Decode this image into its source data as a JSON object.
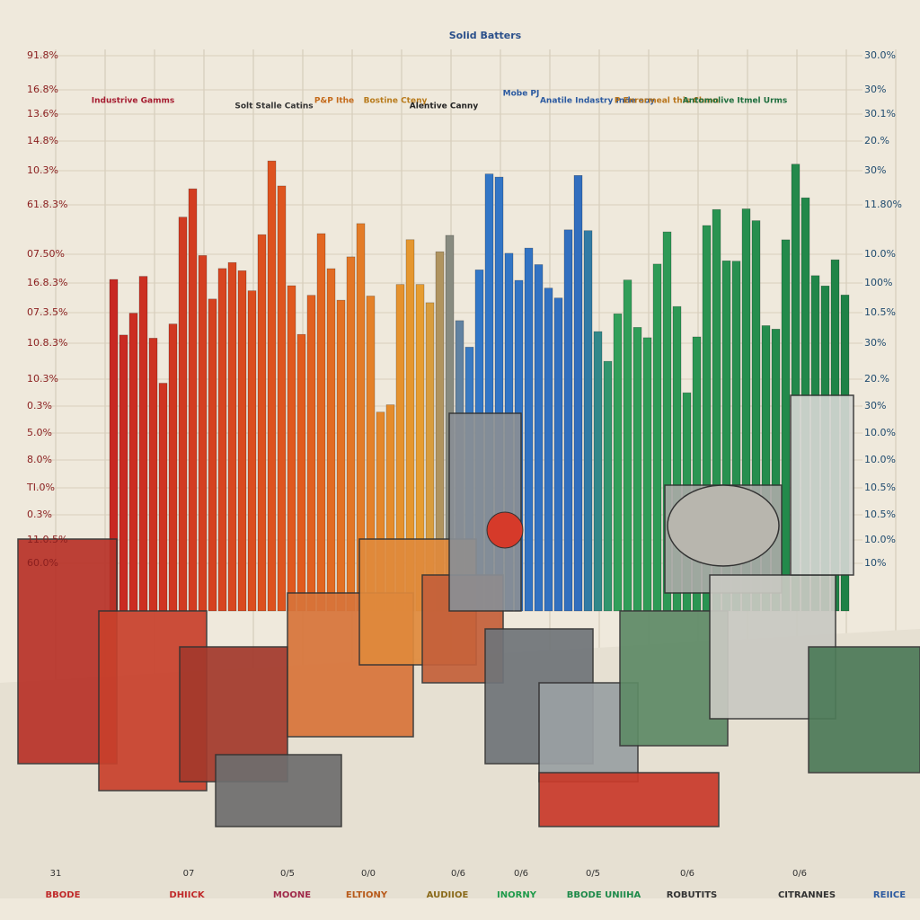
{
  "title": "Solid Batters",
  "left_labels": [
    "91.8%",
    "16.8%",
    "13.6%",
    "14.8%",
    "10.3%",
    "61.8.3%",
    "07.50%",
    "16.8.3%",
    "07.3.5%",
    "10.8.3%",
    "10.3%",
    "0.3%",
    "5.0%",
    "8.0%",
    "TI.0%",
    "0.3%",
    "11.0.5%",
    "60.0%"
  ],
  "right_labels": [
    "30.0%",
    "30%",
    "30.1%",
    "20.%",
    "30%",
    "11.80%",
    "10.0%",
    "100%",
    "10.5%",
    "30%",
    "20.%",
    "30%",
    "10.0%",
    "10.0%",
    "10.5%",
    "10.5%",
    "10.0%",
    "10%"
  ],
  "annotations": [
    "Industrive Gamms",
    "Solt Stalle Catins",
    "P&P Ithe",
    "Bostine Cteny",
    "Alentive Canny",
    "Mobe PJ",
    "Anatile Indastry Inde aoy",
    "P Enrormeal this Chmn",
    "Antomolive Itmel Urms"
  ],
  "bottom_ticks": [
    "31",
    "07",
    "0/5",
    "0/0",
    "0/6",
    "0/6",
    "0/5",
    "0/6",
    "0/6"
  ],
  "bottom_labels": [
    "BBODE",
    "DHIICK",
    "MOONE",
    "ELTIONY",
    "AUDIIOE",
    "INORNY",
    "BBODE UNIIHA",
    "ROBUTITS",
    "CITRANNES",
    "REIICE"
  ]
}
